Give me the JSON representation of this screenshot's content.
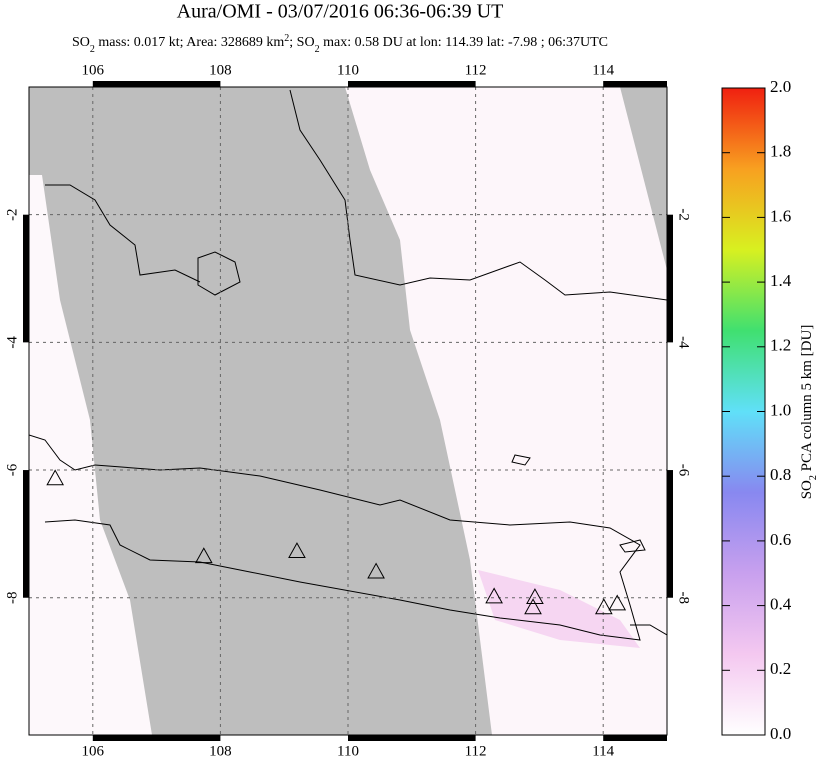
{
  "chart_data": {
    "type": "scatter",
    "title": "Aura/OMI - 03/07/2016 06:36-06:39 UT",
    "subtitle": [
      {
        "text": "SO"
      },
      {
        "sub": "2"
      },
      {
        "text": " mass: 0.017 kt; Area: 328689 km"
      },
      {
        "sup": "2"
      },
      {
        "text": "; SO"
      },
      {
        "sub": "2"
      },
      {
        "text": " max: 0.58 DU at lon: 114.39 lat: -7.98 ; 06:37UTC"
      }
    ],
    "marker": "triangle",
    "x": [
      105.41,
      107.74,
      109.2,
      110.44,
      112.29,
      112.93,
      112.9,
      114.01,
      114.22
    ],
    "y": [
      -6.13,
      -7.35,
      -7.27,
      -7.59,
      -7.98,
      -7.99,
      -8.15,
      -8.15,
      -8.09
    ],
    "xlim": [
      105,
      115
    ],
    "ylim": [
      -10.15,
      0
    ],
    "xticks": [
      106,
      108,
      110,
      112,
      114
    ],
    "yticks": [
      -2,
      -4,
      -6,
      -8
    ],
    "grid": true,
    "colorbar": {
      "label": [
        {
          "text": "SO"
        },
        {
          "sub": "2"
        },
        {
          "text": " PCA column 5 km [DU]"
        }
      ],
      "lim": [
        0,
        2
      ],
      "ticks": [
        {
          "value": 0,
          "label": "0.0"
        },
        0.2,
        0.4,
        0.6,
        0.8,
        {
          "value": 1,
          "label": "1.0"
        },
        1.2,
        1.4,
        1.6,
        1.8,
        {
          "value": 2,
          "label": "2.0"
        }
      ],
      "colors": [
        "#ffffff",
        "#f4c8f0",
        "#c8a0ee",
        "#8888f0",
        "#60e0f8",
        "#40e070",
        "#d8f020",
        "#f8a020",
        "#f02010"
      ]
    }
  }
}
